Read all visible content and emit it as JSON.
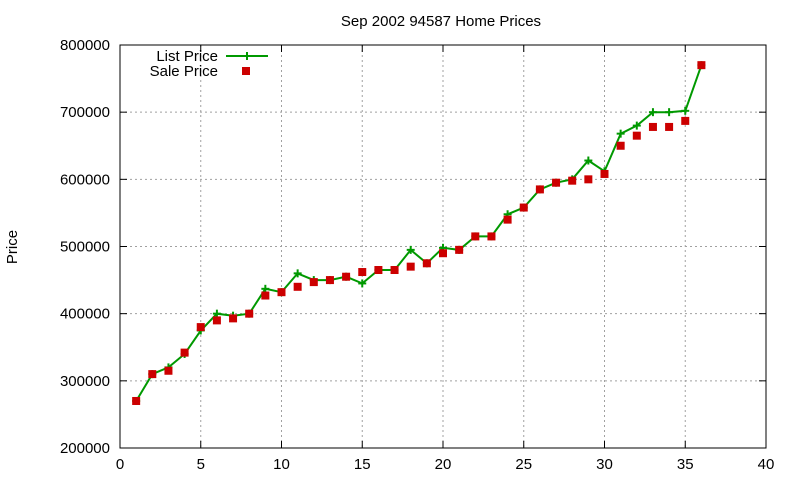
{
  "chart_data": {
    "type": "line",
    "title": "Sep 2002 94587 Home Prices",
    "xlabel": "",
    "ylabel": "Price",
    "xlim": [
      0,
      40
    ],
    "ylim": [
      200000,
      800000
    ],
    "x_ticks": [
      0,
      5,
      10,
      15,
      20,
      25,
      30,
      35,
      40
    ],
    "y_ticks": [
      200000,
      300000,
      400000,
      500000,
      600000,
      700000,
      800000
    ],
    "grid": true,
    "legend_position": "top-left",
    "series": [
      {
        "name": "List Price",
        "style": "line-with-plus-markers",
        "color": "#009900",
        "points": [
          [
            1,
            270000
          ],
          [
            2,
            310000
          ],
          [
            3,
            320000
          ],
          [
            4,
            340000
          ],
          [
            5,
            375000
          ],
          [
            6,
            400000
          ],
          [
            7,
            397000
          ],
          [
            8,
            400000
          ],
          [
            9,
            437000
          ],
          [
            10,
            432000
          ],
          [
            11,
            460000
          ],
          [
            12,
            450000
          ],
          [
            13,
            450000
          ],
          [
            14,
            455000
          ],
          [
            15,
            445000
          ],
          [
            16,
            465000
          ],
          [
            17,
            465000
          ],
          [
            18,
            495000
          ],
          [
            19,
            475000
          ],
          [
            20,
            498000
          ],
          [
            21,
            495000
          ],
          [
            22,
            515000
          ],
          [
            23,
            515000
          ],
          [
            24,
            548000
          ],
          [
            25,
            558000
          ],
          [
            26,
            585000
          ],
          [
            27,
            595000
          ],
          [
            28,
            600000
          ],
          [
            29,
            628000
          ],
          [
            30,
            612000
          ],
          [
            31,
            668000
          ],
          [
            32,
            680000
          ],
          [
            33,
            700000
          ],
          [
            34,
            700000
          ],
          [
            35,
            702000
          ],
          [
            36,
            770000
          ]
        ]
      },
      {
        "name": "Sale Price",
        "style": "square-markers",
        "color": "#cc0000",
        "points": [
          [
            1,
            270000
          ],
          [
            2,
            310000
          ],
          [
            3,
            315000
          ],
          [
            4,
            342000
          ],
          [
            5,
            380000
          ],
          [
            6,
            390000
          ],
          [
            7,
            393000
          ],
          [
            8,
            400000
          ],
          [
            9,
            427000
          ],
          [
            10,
            432000
          ],
          [
            11,
            440000
          ],
          [
            12,
            447000
          ],
          [
            13,
            450000
          ],
          [
            14,
            455000
          ],
          [
            15,
            462000
          ],
          [
            16,
            465000
          ],
          [
            17,
            465000
          ],
          [
            18,
            470000
          ],
          [
            19,
            475000
          ],
          [
            20,
            490000
          ],
          [
            21,
            495000
          ],
          [
            22,
            515000
          ],
          [
            23,
            515000
          ],
          [
            24,
            540000
          ],
          [
            25,
            558000
          ],
          [
            26,
            585000
          ],
          [
            27,
            595000
          ],
          [
            28,
            598000
          ],
          [
            29,
            600000
          ],
          [
            30,
            608000
          ],
          [
            31,
            650000
          ],
          [
            32,
            665000
          ],
          [
            33,
            678000
          ],
          [
            34,
            678000
          ],
          [
            35,
            687000
          ],
          [
            36,
            770000
          ]
        ]
      }
    ]
  }
}
